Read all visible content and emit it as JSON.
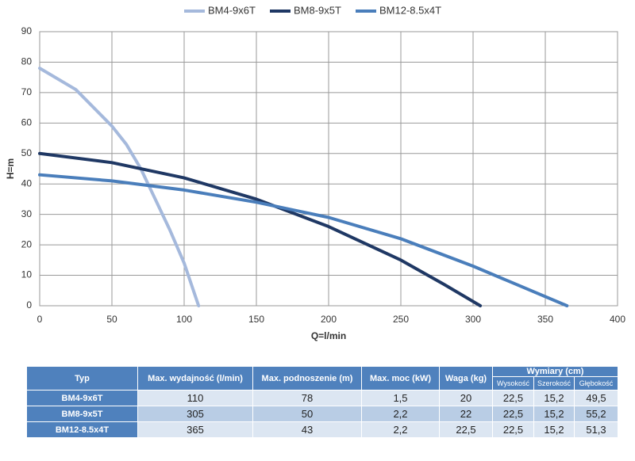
{
  "chart_data": {
    "type": "line",
    "x_label": "Q=l/min",
    "y_label": "H=m",
    "xlim": [
      0,
      400
    ],
    "xticks": [
      0,
      50,
      100,
      150,
      200,
      250,
      300,
      350,
      400
    ],
    "ylim": [
      0,
      90
    ],
    "yticks": [
      0,
      10,
      20,
      30,
      40,
      50,
      60,
      70,
      80,
      90
    ],
    "grid": true,
    "legend": "top",
    "series": [
      {
        "name": "BM4-9x6T",
        "color": "#a5b9dc",
        "x": [
          0,
          25,
          50,
          60,
          70,
          80,
          90,
          100,
          105,
          110
        ],
        "values": [
          78,
          71,
          59,
          53,
          45,
          35,
          25,
          14,
          7,
          0
        ]
      },
      {
        "name": "BM8-9x5T",
        "color": "#1f3864",
        "x": [
          0,
          50,
          100,
          150,
          200,
          250,
          280,
          305
        ],
        "values": [
          50,
          47,
          42,
          35,
          26,
          15,
          7,
          0
        ]
      },
      {
        "name": "BM12-8.5x4T",
        "color": "#4a7ebb",
        "x": [
          0,
          50,
          100,
          150,
          200,
          250,
          300,
          330,
          365
        ],
        "values": [
          43,
          41,
          38,
          34,
          29,
          22,
          13,
          7,
          0
        ]
      }
    ]
  },
  "table": {
    "header": [
      "Typ",
      "Max. wydajność (l/min)",
      "Max. podnoszenie (m)",
      "Max. moc (kW)",
      "Waga (kg)",
      "Wymiary (cm)"
    ],
    "subheader": [
      "Wysokość",
      "Szerokość",
      "Głębokość"
    ],
    "rows": [
      [
        "BM4-9x6T",
        "110",
        "78",
        "1,5",
        "20",
        "22,5",
        "15,2",
        "49,5"
      ],
      [
        "BM8-9x5T",
        "305",
        "50",
        "2,2",
        "22",
        "22,5",
        "15,2",
        "55,2"
      ],
      [
        "BM12-8.5x4T",
        "365",
        "43",
        "2,2",
        "22,5",
        "22,5",
        "15,2",
        "51,3"
      ]
    ]
  }
}
